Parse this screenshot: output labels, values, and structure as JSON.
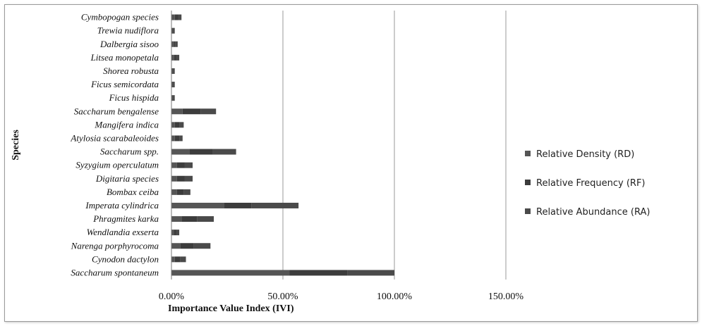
{
  "chart_data": {
    "type": "bar",
    "orientation": "horizontal",
    "stacked": true,
    "ylabel": "Species",
    "xlabel": "Importance Value Index (IVI)",
    "xlim": [
      0,
      150
    ],
    "x_ticks": [
      "0.00%",
      "50.00%",
      "100.00%",
      "150.00%"
    ],
    "gridlines": "vertical",
    "legend_position": "right",
    "categories": [
      "Cymbopogan species",
      "Trewia nudiflora",
      "Dalbergia sisoo",
      "Litsea monopetala",
      "Shorea robusta",
      "Ficus semicordata",
      "Ficus hispida",
      "Saccharum bengalense",
      "Mangifera indica",
      "Atylosia scarabaleoides",
      "Saccharum spp.",
      "Syzygium operculatum",
      "Digitaria species",
      "Bombax ceiba",
      "Imperata cylindrica",
      "Phragmites karka",
      "Wendlandia exserta",
      "Narenga porphyrocoma ",
      "Cynodon dactylon",
      "Saccharum spontaneum"
    ],
    "series": [
      {
        "name": "Relative Density (RD)",
        "color": "#555555",
        "values": [
          1.5,
          0.5,
          1.0,
          1.2,
          0.5,
          0.5,
          0.5,
          5.0,
          1.5,
          1.5,
          8.0,
          2.5,
          2.5,
          2.5,
          23.5,
          4.5,
          1.0,
          4.0,
          1.5,
          53
        ]
      },
      {
        "name": "Relative Frequency (RF)",
        "color": "#3c3c3c",
        "values": [
          1.5,
          0.5,
          0.8,
          1.0,
          0.5,
          0.5,
          0.5,
          8.0,
          2.0,
          2.0,
          10.5,
          3.5,
          3.5,
          3.0,
          12.5,
          7.0,
          1.2,
          6.0,
          2.5,
          26
        ]
      },
      {
        "name": "Relative Abundance (RA)",
        "color": "#4a4a4a",
        "values": [
          1.5,
          0.5,
          1.0,
          1.3,
          0.5,
          0.5,
          0.5,
          7.0,
          2.0,
          1.5,
          10.5,
          3.5,
          3.5,
          3.0,
          21.0,
          7.5,
          1.3,
          7.5,
          2.5,
          21
        ]
      }
    ]
  }
}
